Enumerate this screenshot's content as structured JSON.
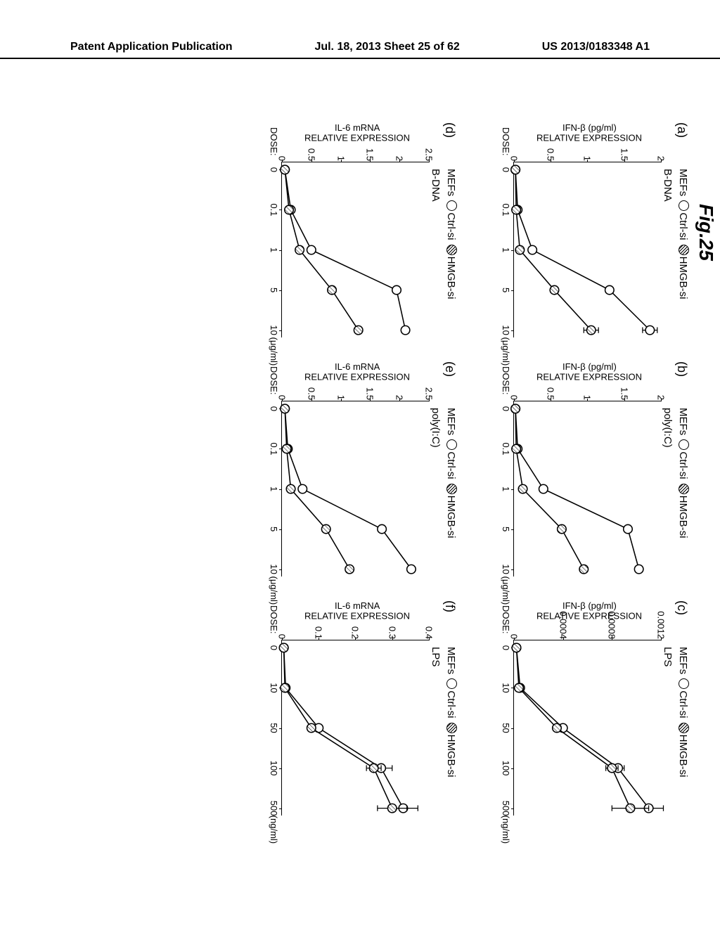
{
  "header": {
    "left": "Patent Application Publication",
    "center": "Jul. 18, 2013  Sheet 25 of 62",
    "right": "US 2013/0183348 A1"
  },
  "figure_label": "Fig.25",
  "legend_template": {
    "cells": "MEFs",
    "ctrl": "Ctrl-si",
    "hmgb": "HMGB-si"
  },
  "dose_label": "DOSE:",
  "panels": [
    {
      "id": "a",
      "label": "(a)",
      "stimulus": "B-DNA",
      "ylabel1": "IFN-β (pg/ml)",
      "ylabel2": "RELATIVE EXPRESSION",
      "yticks": [
        0,
        0.5,
        1.0,
        1.5,
        2.0
      ],
      "ymax": 2.0,
      "xcats": [
        "0",
        "0.1",
        "1",
        "5",
        "10"
      ],
      "xunits": "(μg/ml)",
      "seriesCtrl": [
        0.02,
        0.05,
        0.25,
        1.3,
        1.85
      ],
      "seriesHmgb": [
        0.02,
        0.03,
        0.08,
        0.55,
        1.05
      ],
      "errCtrl": [
        0,
        0,
        0,
        0.05,
        0.1
      ],
      "errHmgb": [
        0,
        0,
        0,
        0.05,
        0.1
      ]
    },
    {
      "id": "b",
      "label": "(b)",
      "stimulus": "poly(I:C)",
      "ylabel1": "IFN-β (pg/ml)",
      "ylabel2": "RELATIVE EXPRESSION",
      "yticks": [
        0,
        0.5,
        1.0,
        1.5,
        2.0
      ],
      "ymax": 2.0,
      "xcats": [
        "0",
        "0.1",
        "1",
        "5",
        "10"
      ],
      "xunits": "(μg/ml)",
      "seriesCtrl": [
        0.02,
        0.05,
        0.4,
        1.55,
        1.7
      ],
      "seriesHmgb": [
        0.02,
        0.03,
        0.12,
        0.65,
        0.95
      ],
      "errCtrl": [
        0,
        0,
        0,
        0,
        0
      ],
      "errHmgb": [
        0,
        0,
        0,
        0,
        0
      ]
    },
    {
      "id": "c",
      "label": "(c)",
      "stimulus": "LPS",
      "ylabel1": "IFN-β (pg/ml)",
      "ylabel2": "RELATIVE EXPRESSION",
      "yticks": [
        0,
        0.0004,
        0.0008,
        0.0012
      ],
      "ymax": 0.0012,
      "xcats": [
        "0",
        "10",
        "50",
        "100",
        "500"
      ],
      "xunits": "(ng/ml)",
      "seriesCtrl": [
        2e-05,
        5e-05,
        0.0004,
        0.00085,
        0.0011
      ],
      "seriesHmgb": [
        2e-05,
        4e-05,
        0.00035,
        0.0008,
        0.00095
      ],
      "errCtrl": [
        0,
        0,
        0,
        5e-05,
        0.00012
      ],
      "errHmgb": [
        0,
        0,
        0,
        5e-05,
        0.00015
      ]
    },
    {
      "id": "d",
      "label": "(d)",
      "stimulus": "B-DNA",
      "ylabel1": "IL-6 mRNA",
      "ylabel2": "RELATIVE EXPRESSION",
      "yticks": [
        0,
        0.5,
        1.0,
        1.5,
        2.0,
        2.5
      ],
      "ymax": 2.5,
      "xcats": [
        "0",
        "0.1",
        "1",
        "5",
        "10"
      ],
      "xunits": "(μg/ml)",
      "seriesCtrl": [
        0.05,
        0.15,
        0.5,
        1.95,
        2.1
      ],
      "seriesHmgb": [
        0.05,
        0.12,
        0.3,
        0.85,
        1.3
      ],
      "errCtrl": [
        0,
        0,
        0,
        0,
        0
      ],
      "errHmgb": [
        0,
        0,
        0,
        0,
        0
      ]
    },
    {
      "id": "e",
      "label": "(e)",
      "stimulus": "poly(I:C)",
      "ylabel1": "IL-6 mRNA",
      "ylabel2": "RELATIVE EXPRESSION",
      "yticks": [
        0,
        0.5,
        1.0,
        1.5,
        2.0,
        2.5
      ],
      "ymax": 2.5,
      "xcats": [
        "0",
        "0.1",
        "1",
        "5",
        "10"
      ],
      "xunits": "(μg/ml)",
      "seriesCtrl": [
        0.05,
        0.1,
        0.35,
        1.7,
        2.2
      ],
      "seriesHmgb": [
        0.05,
        0.08,
        0.15,
        0.75,
        1.15
      ],
      "errCtrl": [
        0,
        0,
        0,
        0,
        0
      ],
      "errHmgb": [
        0,
        0,
        0,
        0,
        0
      ]
    },
    {
      "id": "f",
      "label": "(f)",
      "stimulus": "LPS",
      "ylabel1": "IL-6 mRNA",
      "ylabel2": "RELATIVE EXPRESSION",
      "yticks": [
        0,
        0.1,
        0.2,
        0.3,
        0.4
      ],
      "ymax": 0.4,
      "xcats": [
        "0",
        "10",
        "50",
        "100",
        "500"
      ],
      "xunits": "(ng/ml)",
      "seriesCtrl": [
        0.005,
        0.01,
        0.1,
        0.27,
        0.33
      ],
      "seriesHmgb": [
        0.005,
        0.008,
        0.08,
        0.25,
        0.3
      ],
      "errCtrl": [
        0,
        0,
        0,
        0.03,
        0.04
      ],
      "errHmgb": [
        0,
        0,
        0,
        0.02,
        0.04
      ]
    }
  ],
  "style": {
    "marker_radius": 6,
    "colors": {
      "line": "#000000",
      "bg": "#ffffff"
    }
  }
}
